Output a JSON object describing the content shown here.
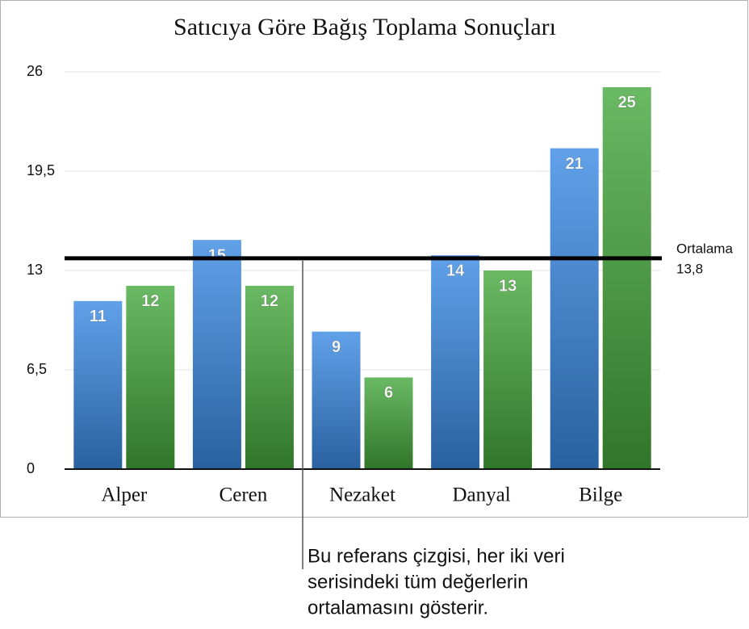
{
  "chart_data": {
    "type": "bar",
    "title": "Satıcıya Göre Bağış Toplama Sonuçları",
    "categories": [
      "Alper",
      "Ceren",
      "Nezaket",
      "Danyal",
      "Bilge"
    ],
    "series": [
      {
        "color": "#3a8ae4",
        "values": [
          11,
          15,
          9,
          14,
          21
        ]
      },
      {
        "color": "#45a83c",
        "values": [
          12,
          12,
          6,
          13,
          25
        ]
      }
    ],
    "ylim": [
      0,
      26
    ],
    "yticks": [
      0,
      {
        "value": 6.5,
        "label": "6,5"
      },
      13,
      {
        "value": 19.5,
        "label": "19,5"
      },
      26
    ],
    "grid": true,
    "reference_line": {
      "label": "Ortalama",
      "value": 13.8,
      "value_label": "13,8"
    },
    "annotation": {
      "lines": [
        "Bu referans çizgisi, her iki veri",
        "serisindeki tüm değerlerin",
        "ortalamasını gösterir."
      ]
    }
  }
}
